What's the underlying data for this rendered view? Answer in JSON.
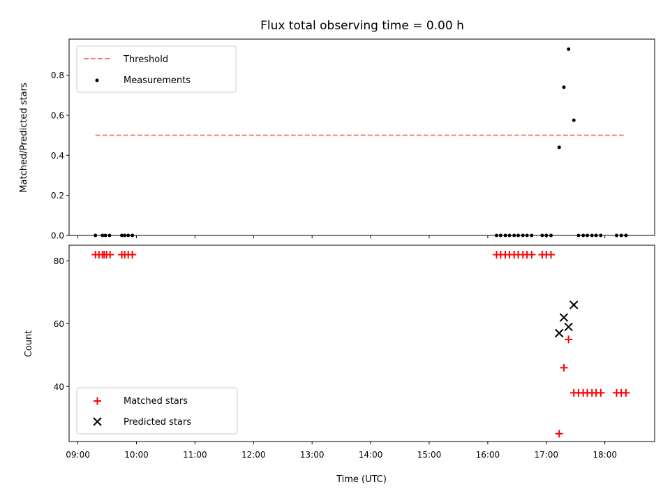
{
  "colors": {
    "threshold": "#f08080",
    "measurement": "#000000",
    "matched": "#ff0000",
    "predicted": "#000000"
  },
  "chart_data": [
    {
      "type": "scatter",
      "title": "Flux total observing time = 0.00 h",
      "ylabel": "Matched/Predicted stars",
      "xlabel": "",
      "xlim": [
        8.85,
        18.85
      ],
      "ylim": [
        0.0,
        0.98
      ],
      "yticks": [
        0.0,
        0.2,
        0.4,
        0.6,
        0.8
      ],
      "ytick_labels": [
        "0.0",
        "0.2",
        "0.4",
        "0.6",
        "0.8"
      ],
      "legend_position": "top-left",
      "threshold": {
        "name": "Threshold",
        "value": 0.5,
        "x_start": 9.3,
        "x_end": 18.33
      },
      "series": [
        {
          "name": "Measurements",
          "points": [
            [
              9.3,
              0.0
            ],
            [
              9.42,
              0.0
            ],
            [
              9.47,
              0.0
            ],
            [
              9.54,
              0.0
            ],
            [
              9.75,
              0.0
            ],
            [
              9.8,
              0.0
            ],
            [
              9.86,
              0.0
            ],
            [
              9.93,
              0.0
            ],
            [
              16.15,
              0.0
            ],
            [
              16.22,
              0.0
            ],
            [
              16.3,
              0.0
            ],
            [
              16.37,
              0.0
            ],
            [
              16.45,
              0.0
            ],
            [
              16.52,
              0.0
            ],
            [
              16.6,
              0.0
            ],
            [
              16.67,
              0.0
            ],
            [
              16.75,
              0.0
            ],
            [
              16.93,
              0.0
            ],
            [
              17.0,
              0.0
            ],
            [
              17.08,
              0.0
            ],
            [
              17.22,
              0.44
            ],
            [
              17.3,
              0.74
            ],
            [
              17.38,
              0.93
            ],
            [
              17.47,
              0.575
            ],
            [
              17.55,
              0.0
            ],
            [
              17.63,
              0.0
            ],
            [
              17.7,
              0.0
            ],
            [
              17.78,
              0.0
            ],
            [
              17.85,
              0.0
            ],
            [
              17.93,
              0.0
            ],
            [
              18.2,
              0.0
            ],
            [
              18.28,
              0.0
            ],
            [
              18.36,
              0.0
            ]
          ]
        }
      ]
    },
    {
      "type": "scatter",
      "title": "",
      "ylabel": "Count",
      "xlabel": "Time (UTC)",
      "xlim": [
        8.85,
        18.85
      ],
      "ylim": [
        22.5,
        85.0
      ],
      "yticks": [
        40,
        60,
        80
      ],
      "ytick_labels": [
        "40",
        "60",
        "80"
      ],
      "xticks": [
        9,
        10,
        11,
        12,
        13,
        14,
        15,
        16,
        17,
        18
      ],
      "xtick_labels": [
        "09:00",
        "10:00",
        "11:00",
        "12:00",
        "13:00",
        "14:00",
        "15:00",
        "16:00",
        "17:00",
        "18:00"
      ],
      "legend_position": "bottom-left",
      "series": [
        {
          "name": "Matched stars",
          "marker": "plus",
          "points": [
            [
              9.3,
              82
            ],
            [
              9.36,
              82
            ],
            [
              9.42,
              82
            ],
            [
              9.45,
              82
            ],
            [
              9.49,
              82
            ],
            [
              9.55,
              82
            ],
            [
              9.75,
              82
            ],
            [
              9.8,
              82
            ],
            [
              9.86,
              82
            ],
            [
              9.93,
              82
            ],
            [
              16.15,
              82
            ],
            [
              16.22,
              82
            ],
            [
              16.3,
              82
            ],
            [
              16.37,
              82
            ],
            [
              16.45,
              82
            ],
            [
              16.52,
              82
            ],
            [
              16.6,
              82
            ],
            [
              16.67,
              82
            ],
            [
              16.75,
              82
            ],
            [
              16.93,
              82
            ],
            [
              17.0,
              82
            ],
            [
              17.08,
              82
            ],
            [
              17.22,
              25
            ],
            [
              17.3,
              46
            ],
            [
              17.38,
              55
            ],
            [
              17.47,
              38
            ],
            [
              17.55,
              38
            ],
            [
              17.63,
              38
            ],
            [
              17.7,
              38
            ],
            [
              17.78,
              38
            ],
            [
              17.85,
              38
            ],
            [
              17.93,
              38
            ],
            [
              18.2,
              38
            ],
            [
              18.28,
              38
            ],
            [
              18.36,
              38
            ]
          ]
        },
        {
          "name": "Predicted stars",
          "marker": "x",
          "points": [
            [
              17.22,
              57
            ],
            [
              17.3,
              62
            ],
            [
              17.38,
              59
            ],
            [
              17.47,
              66
            ]
          ]
        }
      ]
    }
  ]
}
